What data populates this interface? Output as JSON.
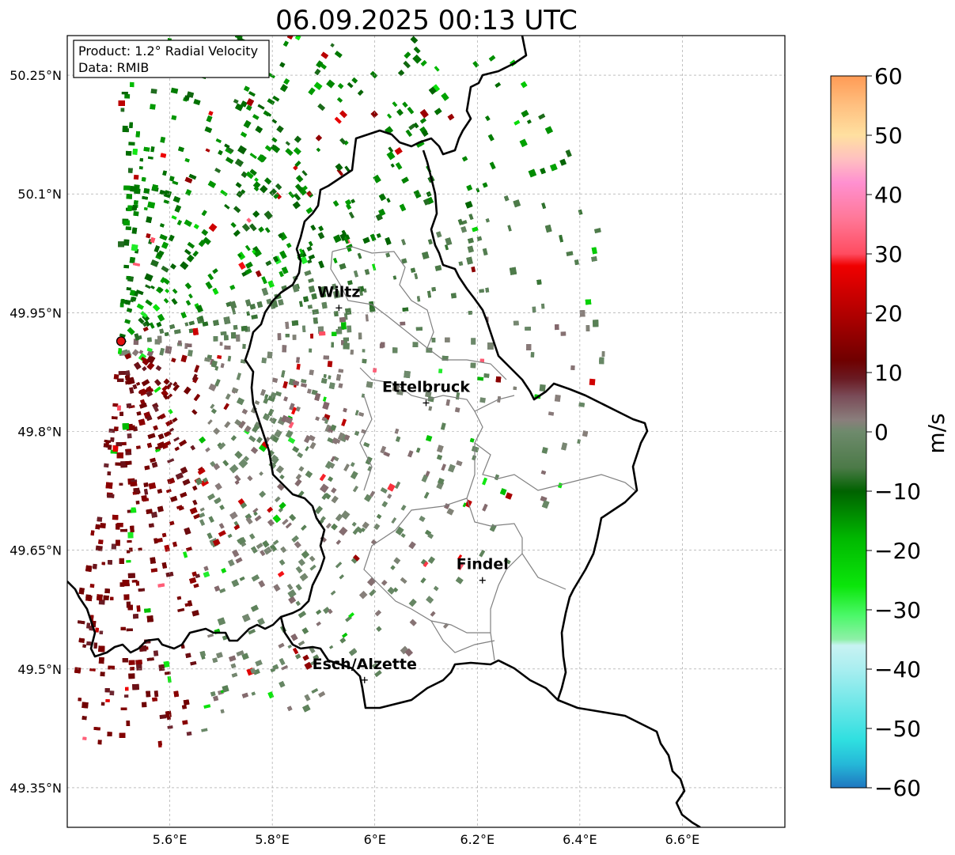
{
  "title": "06.09.2025 00:13 UTC",
  "info_box": {
    "product": "Product: 1.2° Radial Velocity",
    "source": "Data: RMIB"
  },
  "map": {
    "lon_range": [
      5.4,
      6.8
    ],
    "lat_range": [
      49.3,
      50.3
    ],
    "x_ticks": [
      {
        "value": 5.6,
        "label": "5.6°E"
      },
      {
        "value": 5.8,
        "label": "5.8°E"
      },
      {
        "value": 6.0,
        "label": "6°E"
      },
      {
        "value": 6.2,
        "label": "6.2°E"
      },
      {
        "value": 6.4,
        "label": "6.4°E"
      },
      {
        "value": 6.6,
        "label": "6.6°E"
      }
    ],
    "y_ticks": [
      {
        "value": 50.25,
        "label": "50.25°N"
      },
      {
        "value": 50.1,
        "label": "50.1°N"
      },
      {
        "value": 49.95,
        "label": "49.95°N"
      },
      {
        "value": 49.8,
        "label": "49.8°N"
      },
      {
        "value": 49.65,
        "label": "49.65°N"
      },
      {
        "value": 49.5,
        "label": "49.5°N"
      },
      {
        "value": 49.35,
        "label": "49.35°N"
      }
    ],
    "radar_site": {
      "lon": 5.505,
      "lat": 49.914
    },
    "cities": [
      {
        "name": "Wiltz",
        "lon": 5.93,
        "lat": 49.97
      },
      {
        "name": "Ettelbruck",
        "lon": 6.1,
        "lat": 49.85
      },
      {
        "name": "Findel",
        "lon": 6.21,
        "lat": 49.626
      },
      {
        "name": "Esch/Alzette",
        "lon": 5.98,
        "lat": 49.5
      }
    ],
    "border_color": "#000000",
    "canton_color": "#808080"
  },
  "colorbar": {
    "unit": "m/s",
    "min": -60,
    "max": 60,
    "ticks": [
      {
        "value": 60,
        "label": "60"
      },
      {
        "value": 50,
        "label": "50"
      },
      {
        "value": 40,
        "label": "40"
      },
      {
        "value": 30,
        "label": "30"
      },
      {
        "value": 20,
        "label": "20"
      },
      {
        "value": 10,
        "label": "10"
      },
      {
        "value": 0,
        "label": "0"
      },
      {
        "value": -10,
        "label": "−10"
      },
      {
        "value": -20,
        "label": "−20"
      },
      {
        "value": -30,
        "label": "−30"
      },
      {
        "value": -40,
        "label": "−40"
      },
      {
        "value": -50,
        "label": "−50"
      },
      {
        "value": -60,
        "label": "−60"
      }
    ],
    "stops": [
      {
        "value": -60,
        "color": "#1f77c0"
      },
      {
        "value": -56,
        "color": "#25b8d8"
      },
      {
        "value": -52,
        "color": "#2fdfe0"
      },
      {
        "value": -46,
        "color": "#6de7e8"
      },
      {
        "value": -40,
        "color": "#a9eef0"
      },
      {
        "value": -36,
        "color": "#c8f2f2"
      },
      {
        "value": -35,
        "color": "#8ff0a8"
      },
      {
        "value": -31,
        "color": "#4cf86a"
      },
      {
        "value": -26,
        "color": "#0be60b"
      },
      {
        "value": -18,
        "color": "#00b800"
      },
      {
        "value": -10,
        "color": "#006200"
      },
      {
        "value": -6,
        "color": "#4c7a48"
      },
      {
        "value": 0,
        "color": "#6e8a6c"
      },
      {
        "value": 2,
        "color": "#8a7e7c"
      },
      {
        "value": 6,
        "color": "#7a4c58"
      },
      {
        "value": 9,
        "color": "#6a1a22"
      },
      {
        "value": 12,
        "color": "#6f0000"
      },
      {
        "value": 20,
        "color": "#b20000"
      },
      {
        "value": 28,
        "color": "#f00000"
      },
      {
        "value": 30,
        "color": "#ff4c60"
      },
      {
        "value": 36,
        "color": "#ff7898"
      },
      {
        "value": 42,
        "color": "#ff90d0"
      },
      {
        "value": 46,
        "color": "#ffc0c0"
      },
      {
        "value": 50,
        "color": "#ffe0a0"
      },
      {
        "value": 55,
        "color": "#ffc080"
      },
      {
        "value": 60,
        "color": "#ff9a55"
      }
    ]
  }
}
